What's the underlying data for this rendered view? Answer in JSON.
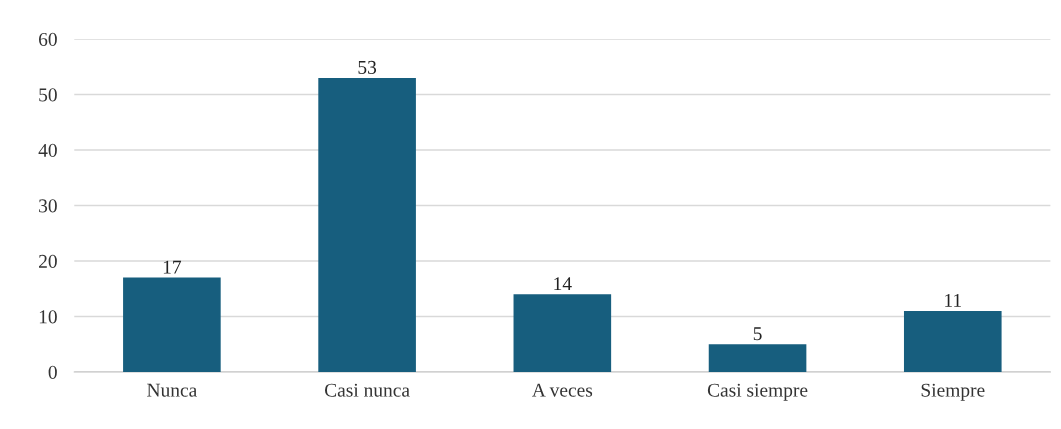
{
  "chart_data": {
    "type": "bar",
    "categories": [
      "Nunca",
      "Casi nunca",
      "A veces",
      "Casi siempre",
      "Siempre"
    ],
    "values": [
      17,
      53,
      14,
      5,
      11
    ],
    "color": "#175e7e",
    "ylim": [
      0,
      60
    ],
    "yticks": [
      0,
      10,
      20,
      30,
      40,
      50,
      60
    ],
    "grid": "y",
    "data_labels": true,
    "legend": false
  }
}
